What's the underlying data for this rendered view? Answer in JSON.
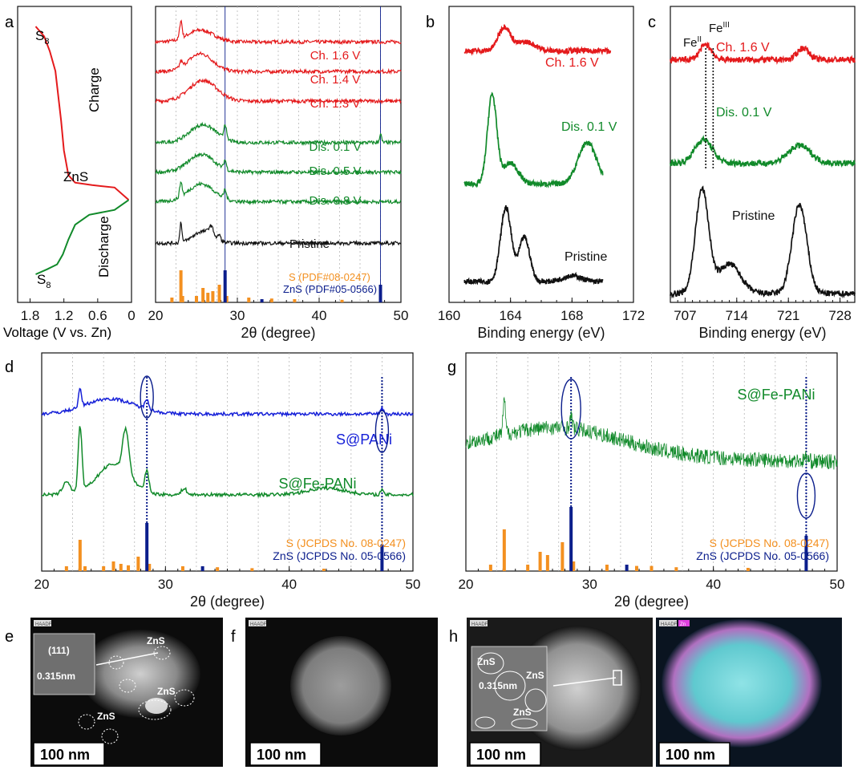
{
  "colors": {
    "red": "#e41a1c",
    "green": "#118a2a",
    "blue": "#1620d8",
    "black": "#111111",
    "orange": "#f39020",
    "navy": "#0b1e8c",
    "grid": "#b7b7b7"
  },
  "panels": {
    "a": "a",
    "b": "b",
    "c": "c",
    "d": "d",
    "e": "e",
    "f": "f",
    "g": "g",
    "h": "h"
  },
  "chart_data": [
    {
      "id": "a-left",
      "type": "line",
      "xlabel": "Voltage (V vs. Zn)",
      "ticks": [
        "1.8",
        "1.2",
        "0.6",
        "0"
      ],
      "annotations": {
        "s8_top": "S",
        "s8_sub": "8",
        "charge": "Charge",
        "zns": "ZnS",
        "discharge": "Discharge",
        "s8_bottom": "S"
      },
      "series": [
        {
          "name": "Charge",
          "color": "red",
          "points": [
            [
              1.7,
              0
            ],
            [
              1.55,
              0.04
            ],
            [
              1.45,
              0.1
            ],
            [
              1.35,
              0.18
            ],
            [
              1.25,
              0.38
            ],
            [
              1.2,
              0.5
            ],
            [
              1.12,
              0.6
            ],
            [
              1.0,
              0.63
            ],
            [
              0.7,
              0.64
            ],
            [
              0.3,
              0.65
            ],
            [
              0.05,
              0.7
            ]
          ]
        },
        {
          "name": "Discharge",
          "color": "green",
          "points": [
            [
              0.05,
              0.7
            ],
            [
              0.3,
              0.74
            ],
            [
              0.75,
              0.76
            ],
            [
              1.0,
              0.8
            ],
            [
              1.12,
              0.86
            ],
            [
              1.22,
              0.92
            ],
            [
              1.32,
              0.96
            ],
            [
              1.5,
              0.98
            ],
            [
              1.7,
              1.0
            ]
          ]
        }
      ]
    },
    {
      "id": "a-right",
      "type": "line",
      "xlabel": "2θ (degree)",
      "xlim": [
        20,
        50
      ],
      "xticks": [
        20,
        30,
        40,
        50
      ],
      "vlines": [
        28.5,
        47.5
      ],
      "series": [
        {
          "name": "Ch. 1.6 V",
          "color": "red",
          "offset": 0.12,
          "peaks": [
            [
              23.1,
              0.06,
              0.15
            ],
            [
              25.5,
              0.04,
              1.6
            ]
          ]
        },
        {
          "name": "Ch. 1.4 V",
          "color": "red",
          "offset": 0.22,
          "peaks": [
            [
              23.1,
              0.02,
              0.15
            ],
            [
              25.5,
              0.06,
              1.5
            ]
          ]
        },
        {
          "name": "Ch. 1.3 V",
          "color": "red",
          "offset": 0.32,
          "peaks": [
            [
              25.8,
              0.07,
              1.7
            ]
          ]
        },
        {
          "name": "Dis. 0.1 V",
          "color": "green",
          "offset": 0.46,
          "peaks": [
            [
              25.8,
              0.06,
              1.6
            ],
            [
              28.5,
              0.05,
              0.15
            ],
            [
              47.5,
              0.03,
              0.12
            ]
          ]
        },
        {
          "name": "Dis. 0.5 V",
          "color": "green",
          "offset": 0.56,
          "peaks": [
            [
              25.6,
              0.06,
              1.6
            ],
            [
              28.5,
              0.03,
              0.15
            ]
          ]
        },
        {
          "name": "Dis. 0.8 V",
          "color": "green",
          "offset": 0.66,
          "peaks": [
            [
              23.1,
              0.05,
              0.15
            ],
            [
              25.6,
              0.06,
              1.6
            ],
            [
              28.5,
              0.03,
              0.15
            ]
          ]
        },
        {
          "name": "Pristine",
          "color": "black",
          "offset": 0.8,
          "peaks": [
            [
              23.1,
              0.07,
              0.12
            ],
            [
              25.8,
              0.04,
              1.2
            ],
            [
              26.8,
              0.03,
              0.3
            ],
            [
              27.8,
              0.02,
              0.15
            ]
          ]
        }
      ],
      "refs": {
        "S": {
          "label": "S (PDF#08-0247)",
          "color": "orange",
          "x": [
            22.0,
            23.1,
            23.3,
            25.0,
            25.8,
            26.4,
            27.0,
            27.8,
            28.7,
            31.4,
            34.2,
            37.0,
            42.8
          ],
          "h": [
            0.15,
            1.0,
            0.2,
            0.2,
            0.45,
            0.3,
            0.35,
            0.55,
            0.2,
            0.15,
            0.12,
            0.1,
            0.08
          ]
        },
        "ZnS": {
          "label": "ZnS (PDF#05-0566)",
          "color": "navy",
          "x": [
            28.5,
            33.0,
            47.5
          ],
          "h": [
            1.0,
            0.1,
            0.55
          ]
        }
      }
    },
    {
      "id": "b",
      "type": "line",
      "xlabel": "Binding energy (eV)",
      "xlim": [
        160,
        172
      ],
      "xticks": [
        160,
        164,
        168,
        172
      ],
      "series": [
        {
          "name": "Ch. 1.6 V",
          "color": "red",
          "offset": 0.15,
          "range": [
            161,
            170.5
          ],
          "peaks": [
            [
              163.6,
              0.08,
              0.4
            ],
            [
              165,
              0.03,
              0.6
            ]
          ]
        },
        {
          "name": "Dis. 0.1 V",
          "color": "green",
          "offset": 0.6,
          "range": [
            161,
            170
          ],
          "peaks": [
            [
              162.8,
              0.3,
              0.3
            ],
            [
              164,
              0.07,
              0.5
            ],
            [
              169,
              0.14,
              0.6
            ]
          ]
        },
        {
          "name": "Pristine",
          "color": "black",
          "offset": 0.93,
          "range": [
            161,
            170
          ],
          "peaks": [
            [
              163.7,
              0.25,
              0.35
            ],
            [
              164.9,
              0.15,
              0.35
            ],
            [
              168,
              0.02,
              0.6
            ]
          ]
        }
      ]
    },
    {
      "id": "c",
      "type": "line",
      "xlabel": "Binding energy (eV)",
      "xlim": [
        705,
        730
      ],
      "xticks": [
        707,
        714,
        721,
        728
      ],
      "markers": {
        "fe2": "Fe",
        "fe2_sup": "II",
        "fe3": "Fe",
        "fe3_sup": "III",
        "x": [
          709.8,
          710.8
        ]
      },
      "series": [
        {
          "name": "Ch. 1.6 V",
          "color": "red",
          "offset": 0.18,
          "peaks": [
            [
              709.8,
              0.05,
              0.8
            ],
            [
              723,
              0.04,
              0.8
            ]
          ]
        },
        {
          "name": "Dis. 0.1 V",
          "color": "green",
          "offset": 0.53,
          "peaks": [
            [
              709.5,
              0.08,
              1.2
            ],
            [
              722.5,
              0.06,
              1.5
            ]
          ]
        },
        {
          "name": "Pristine",
          "color": "black",
          "offset": 0.97,
          "peaks": [
            [
              709.3,
              0.35,
              0.9
            ],
            [
              713,
              0.1,
              1.5
            ],
            [
              722.5,
              0.3,
              1.0
            ]
          ]
        }
      ]
    },
    {
      "id": "d",
      "type": "line",
      "xlabel": "2θ (degree)",
      "xlim": [
        20,
        50
      ],
      "xticks": [
        20,
        30,
        40,
        50
      ],
      "vlines": [
        28.5,
        47.5
      ],
      "series": [
        {
          "name": "S@PANi",
          "color": "blue",
          "offset": 0.28,
          "peaks": [
            [
              23.1,
              0.08,
              0.12
            ],
            [
              25.5,
              0.07,
              2.0
            ],
            [
              28.5,
              0.05,
              0.15
            ],
            [
              47.5,
              0.03,
              0.12
            ]
          ]
        },
        {
          "name": "S@Fe-PANi",
          "color": "green",
          "offset": 0.65,
          "peaks": [
            [
              23.1,
              0.3,
              0.15
            ],
            [
              22,
              0.06,
              0.3
            ],
            [
              25.8,
              0.14,
              1.3
            ],
            [
              26.8,
              0.2,
              0.25
            ],
            [
              28.5,
              0.1,
              0.15
            ],
            [
              31.5,
              0.03,
              0.2
            ],
            [
              43,
              0.03,
              1.5
            ],
            [
              47.5,
              0.02,
              0.12
            ]
          ]
        }
      ],
      "refs": {
        "S": {
          "label": "S (JCPDS No. 08-0247)",
          "color": "orange",
          "x": [
            22.0,
            23.1,
            23.5,
            25.0,
            25.8,
            26.4,
            27.0,
            27.8,
            28.7,
            31.4,
            34.2,
            37.0,
            42.8
          ],
          "h": [
            0.1,
            0.65,
            0.1,
            0.1,
            0.2,
            0.15,
            0.12,
            0.3,
            0.15,
            0.1,
            0.08,
            0.06,
            0.05
          ]
        },
        "ZnS": {
          "label": "ZnS (JCPDS No. 05-0566)",
          "color": "navy",
          "x": [
            28.5,
            33.0,
            47.5
          ],
          "h": [
            1.0,
            0.1,
            0.55
          ]
        }
      }
    },
    {
      "id": "g",
      "type": "line",
      "xlabel": "2θ (degree)",
      "xlim": [
        20,
        50
      ],
      "xticks": [
        20,
        30,
        40,
        50
      ],
      "vlines": [
        28.5,
        47.5
      ],
      "series": [
        {
          "name": "S@Fe-PANi",
          "color": "green",
          "offset": 0.5,
          "peaks": [
            [
              23.1,
              0.15,
              0.1
            ],
            [
              27.5,
              0.12,
              5.0
            ],
            [
              28.5,
              0.05,
              0.12
            ],
            [
              47.5,
              0.02,
              0.12
            ]
          ]
        }
      ],
      "refs": {
        "S": {
          "label": "S (JCPDS No. 08-0247)",
          "color": "orange",
          "x": [
            22.0,
            23.1,
            25.0,
            26.0,
            26.6,
            27.8,
            28.7,
            31.4,
            33.8,
            35.0,
            37.0,
            42.8
          ],
          "h": [
            0.1,
            0.65,
            0.1,
            0.3,
            0.25,
            0.45,
            0.15,
            0.1,
            0.08,
            0.08,
            0.06,
            0.05
          ]
        },
        "ZnS": {
          "label": "ZnS (JCPDS No. 05-0566)",
          "color": "navy",
          "x": [
            28.5,
            33.0,
            47.5
          ],
          "h": [
            1.0,
            0.1,
            0.55
          ]
        }
      }
    }
  ],
  "micrographs": {
    "e": {
      "tag": "HAADF",
      "scale": "100 nm",
      "inset_plane": "(111)",
      "inset_d": "0.315nm",
      "labels": [
        "ZnS",
        "ZnS",
        "ZnS"
      ]
    },
    "f": {
      "tag": "HAADF",
      "scale": "100 nm"
    },
    "h1": {
      "tag": "HAADF",
      "scale": "100 nm",
      "inset_d": "0.315nm",
      "labels": [
        "ZnS",
        "ZnS",
        "ZnS"
      ]
    },
    "h2": {
      "tag": "HAADF",
      "tag2": "Zn",
      "scale": "100 nm"
    }
  }
}
